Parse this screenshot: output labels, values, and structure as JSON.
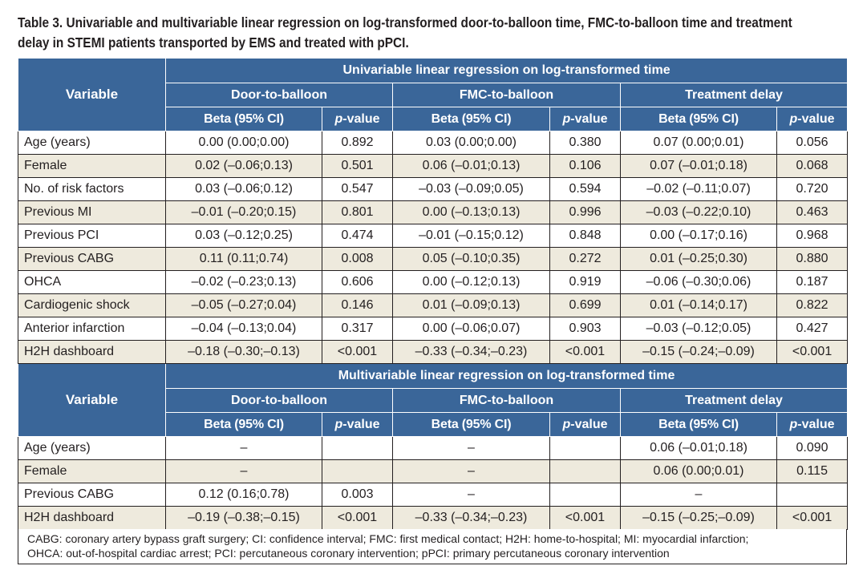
{
  "caption": {
    "line1": "Table 3. Univariable and multivariable linear regression on log-transformed door-to-balloon time, FMC-to-balloon time and treatment",
    "line2": "delay in STEMI patients transported by EMS and treated with pPCI."
  },
  "headers": {
    "variable": "Variable",
    "univariable_title": "Univariable linear regression on log-transformed time",
    "multivariable_title": "Multivariable linear regression on log-transformed time",
    "groups": [
      "Door-to-balloon",
      "FMC-to-balloon",
      "Treatment delay"
    ],
    "beta": "Beta (95% CI)",
    "p_italic": "p",
    "p_rest": "-value"
  },
  "univariable_rows": [
    {
      "label": "Age (years)",
      "cells": [
        "0.00 (0.00;0.00)",
        "0.892",
        "0.03 (0.00;0.00)",
        "0.380",
        "0.07 (0.00;0.01)",
        "0.056"
      ]
    },
    {
      "label": "Female",
      "cells": [
        "0.02 (–0.06;0.13)",
        "0.501",
        "0.06 (–0.01;0.13)",
        "0.106",
        "0.07 (–0.01;0.18)",
        "0.068"
      ]
    },
    {
      "label": "No. of risk factors",
      "cells": [
        "0.03 (–0.06;0.12)",
        "0.547",
        "–0.03 (–0.09;0.05)",
        "0.594",
        "–0.02 (–0.11;0.07)",
        "0.720"
      ]
    },
    {
      "label": "Previous MI",
      "cells": [
        "–0.01 (–0.20;0.15)",
        "0.801",
        "0.00 (–0.13;0.13)",
        "0.996",
        "–0.03 (–0.22;0.10)",
        "0.463"
      ]
    },
    {
      "label": "Previous PCI",
      "cells": [
        "0.03 (–0.12;0.25)",
        "0.474",
        "–0.01 (–0.15;0.12)",
        "0.848",
        "0.00 (–0.17;0.16)",
        "0.968"
      ]
    },
    {
      "label": "Previous CABG",
      "cells": [
        "0.11 (0.11;0.74)",
        "0.008",
        "0.05 (–0.10;0.35)",
        "0.272",
        "0.01 (–0.25;0.30)",
        "0.880"
      ]
    },
    {
      "label": "OHCA",
      "cells": [
        "–0.02 (–0.23;0.13)",
        "0.606",
        "0.00 (–0.12;0.13)",
        "0.919",
        "–0.06 (–0.30;0.06)",
        "0.187"
      ]
    },
    {
      "label": "Cardiogenic shock",
      "cells": [
        "–0.05 (–0.27;0.04)",
        "0.146",
        "0.01 (–0.09;0.13)",
        "0.699",
        "0.01 (–0.14;0.17)",
        "0.822"
      ]
    },
    {
      "label": "Anterior infarction",
      "cells": [
        "–0.04 (–0.13;0.04)",
        "0.317",
        "0.00 (–0.06;0.07)",
        "0.903",
        "–0.03 (–0.12;0.05)",
        "0.427"
      ]
    },
    {
      "label": "H2H dashboard",
      "cells": [
        "–0.18 (–0.30;–0.13)",
        "<0.001",
        "–0.33 (–0.34;–0.23)",
        "<0.001",
        "–0.15 (–0.24;–0.09)",
        "<0.001"
      ]
    }
  ],
  "multivariable_rows": [
    {
      "label": "Age (years)",
      "cells": [
        "–",
        "",
        "–",
        "",
        "0.06 (–0.01;0.18)",
        "0.090"
      ]
    },
    {
      "label": "Female",
      "cells": [
        "–",
        "",
        "–",
        "",
        "0.06 (0.00;0.01)",
        "0.115"
      ]
    },
    {
      "label": "Previous CABG",
      "cells": [
        "0.12 (0.16;0.78)",
        "0.003",
        "–",
        "",
        "–",
        ""
      ]
    },
    {
      "label": "H2H dashboard",
      "cells": [
        "–0.19 (–0.38;–0.15)",
        "<0.001",
        "–0.33 (–0.34;–0.23)",
        "<0.001",
        "–0.15 (–0.25;–0.09)",
        "<0.001"
      ]
    }
  ],
  "footnote": {
    "line1": "CABG: coronary artery bypass graft surgery; CI: confidence interval; FMC: first medical contact; H2H: home-to-hospital; MI: myocardial infarction;",
    "line2": "OHCA: out-of-hospital cardiac arrest; PCI: percutaneous coronary intervention; pPCI: primary percutaneous coronary intervention"
  },
  "colors": {
    "header_bg": "#3a6699",
    "shaded_row": "#eeeadd"
  }
}
